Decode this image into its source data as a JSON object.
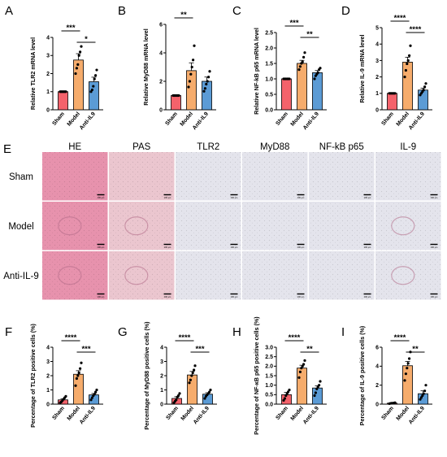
{
  "figure": {
    "histology": {
      "letter": "E",
      "columns": [
        "HE",
        "PAS",
        "TLR2",
        "MyD88",
        "NF-kB p65",
        "IL-9"
      ],
      "rows": [
        "Sham",
        "Model",
        "Anti-IL-9"
      ],
      "scale_bar": "100 μm"
    }
  },
  "colors": {
    "sham": "#f4626b",
    "model": "#f6ac6c",
    "anti": "#5b9bd5",
    "tile_he": "#e792ad",
    "tile_pas": "#ebc6cf",
    "tile_ihc": "#e4e4ec"
  },
  "chart_data": [
    {
      "id": "A",
      "type": "bar",
      "ylabel": "Relative TLR2 mRNA level",
      "categories": [
        "Sham",
        "Model",
        "Anti-IL9"
      ],
      "values": [
        1.0,
        2.75,
        1.55
      ],
      "errors": [
        0.0,
        0.35,
        0.25
      ],
      "points": [
        [
          1.0,
          1.0,
          1.0,
          1.0,
          1.0,
          1.0
        ],
        [
          2.0,
          2.3,
          2.5,
          3.0,
          3.2,
          3.5
        ],
        [
          1.0,
          1.1,
          1.3,
          1.7,
          1.9,
          2.2
        ]
      ],
      "ylim": [
        0,
        4
      ],
      "yticks": [
        0,
        1,
        2,
        3,
        4
      ],
      "significance": [
        {
          "from": 0,
          "to": 1,
          "label": "***"
        },
        {
          "from": 1,
          "to": 2,
          "label": "*"
        }
      ]
    },
    {
      "id": "B",
      "type": "bar",
      "ylabel": "Relative MyD88 mRNA level",
      "categories": [
        "Sham",
        "Model",
        "Anti-IL9"
      ],
      "values": [
        1.0,
        2.75,
        2.0
      ],
      "errors": [
        0.0,
        0.55,
        0.3
      ],
      "points": [
        [
          1.0,
          1.0,
          1.0,
          1.0,
          1.0,
          1.0
        ],
        [
          1.6,
          2.0,
          2.5,
          3.0,
          3.5,
          4.5
        ],
        [
          1.3,
          1.5,
          1.8,
          2.0,
          2.3,
          2.7
        ]
      ],
      "ylim": [
        0,
        6
      ],
      "yticks": [
        0,
        2,
        4,
        6
      ],
      "significance": [
        {
          "from": 0,
          "to": 1,
          "label": "**"
        }
      ]
    },
    {
      "id": "C",
      "type": "bar",
      "ylabel": "Relative NF-kB p65 mRNA level",
      "categories": [
        "Sham",
        "Model",
        "Anti-IL9"
      ],
      "values": [
        1.0,
        1.5,
        1.2
      ],
      "errors": [
        0.0,
        0.1,
        0.07
      ],
      "points": [
        [
          1.0,
          1.0,
          1.0,
          1.0,
          1.0,
          1.0
        ],
        [
          1.3,
          1.4,
          1.5,
          1.55,
          1.7,
          1.85
        ],
        [
          1.0,
          1.1,
          1.15,
          1.2,
          1.3,
          1.35
        ]
      ],
      "ylim": [
        0.0,
        2.5
      ],
      "yticks": [
        0.0,
        0.5,
        1.0,
        1.5,
        2.0,
        2.5
      ],
      "significance": [
        {
          "from": 0,
          "to": 1,
          "label": "***"
        },
        {
          "from": 1,
          "to": 2,
          "label": "**"
        }
      ]
    },
    {
      "id": "D",
      "type": "bar",
      "ylabel": "Relative IL-9 mRNA level",
      "categories": [
        "Sham",
        "Model",
        "Anti-IL9"
      ],
      "values": [
        1.0,
        2.9,
        1.2
      ],
      "errors": [
        0.0,
        0.3,
        0.12
      ],
      "points": [
        [
          1.0,
          1.0,
          1.0,
          1.0,
          1.0,
          1.0
        ],
        [
          2.0,
          2.4,
          2.8,
          3.0,
          3.3,
          3.9
        ],
        [
          0.9,
          1.0,
          1.1,
          1.2,
          1.4,
          1.6
        ]
      ],
      "ylim": [
        0,
        5
      ],
      "yticks": [
        0,
        1,
        2,
        3,
        4,
        5
      ],
      "significance": [
        {
          "from": 0,
          "to": 1,
          "label": "****"
        },
        {
          "from": 1,
          "to": 2,
          "label": "****"
        }
      ]
    },
    {
      "id": "F",
      "type": "bar",
      "ylabel": "Percentage of TLR2 positive cells (%)",
      "categories": [
        "Sham",
        "Model",
        "Anti-IL9"
      ],
      "values": [
        0.3,
        2.1,
        0.65
      ],
      "errors": [
        0.08,
        0.25,
        0.1
      ],
      "points": [
        [
          0.1,
          0.15,
          0.25,
          0.35,
          0.45,
          0.55
        ],
        [
          1.3,
          1.8,
          2.0,
          2.2,
          2.5,
          2.9
        ],
        [
          0.3,
          0.45,
          0.6,
          0.7,
          0.85,
          1.0
        ]
      ],
      "ylim": [
        0,
        4
      ],
      "yticks": [
        0,
        1,
        2,
        3,
        4
      ],
      "significance": [
        {
          "from": 0,
          "to": 1,
          "label": "****"
        },
        {
          "from": 1,
          "to": 2,
          "label": "***"
        }
      ]
    },
    {
      "id": "G",
      "type": "bar",
      "ylabel": "Percentage of MyD88 positive cells (%)",
      "categories": [
        "Sham",
        "Model",
        "Anti-IL9"
      ],
      "values": [
        0.4,
        2.05,
        0.7
      ],
      "errors": [
        0.12,
        0.25,
        0.1
      ],
      "points": [
        [
          0.1,
          0.2,
          0.3,
          0.5,
          0.6,
          0.75
        ],
        [
          1.5,
          1.7,
          2.0,
          2.2,
          2.4,
          2.7
        ],
        [
          0.4,
          0.55,
          0.65,
          0.75,
          0.85,
          1.0
        ]
      ],
      "ylim": [
        0,
        4
      ],
      "yticks": [
        0,
        1,
        2,
        3,
        4
      ],
      "significance": [
        {
          "from": 0,
          "to": 1,
          "label": "****"
        },
        {
          "from": 1,
          "to": 2,
          "label": "***"
        }
      ]
    },
    {
      "id": "H",
      "type": "bar",
      "ylabel": "Percentage of NF-κB p65 positive cells (%)",
      "categories": [
        "Sham",
        "Model",
        "Anti-IL9"
      ],
      "values": [
        0.5,
        1.9,
        0.85
      ],
      "errors": [
        0.12,
        0.15,
        0.12
      ],
      "points": [
        [
          0.2,
          0.3,
          0.45,
          0.55,
          0.65,
          0.75
        ],
        [
          1.4,
          1.7,
          1.9,
          2.0,
          2.1,
          2.3
        ],
        [
          0.45,
          0.6,
          0.8,
          0.9,
          1.0,
          1.2
        ]
      ],
      "ylim": [
        0.0,
        3.0
      ],
      "yticks": [
        0.0,
        0.5,
        1.0,
        1.5,
        2.0,
        2.5,
        3.0
      ],
      "significance": [
        {
          "from": 0,
          "to": 1,
          "label": "****"
        },
        {
          "from": 1,
          "to": 2,
          "label": "**"
        }
      ]
    },
    {
      "id": "I",
      "type": "bar",
      "ylabel": "Percentage of IL-9 positive cells (%)",
      "categories": [
        "Sham",
        "Model",
        "Anti-IL9"
      ],
      "values": [
        0.1,
        4.05,
        1.1
      ],
      "errors": [
        0.03,
        0.45,
        0.3
      ],
      "points": [
        [
          0.05,
          0.08,
          0.1,
          0.1,
          0.12,
          0.15
        ],
        [
          2.5,
          3.2,
          3.8,
          4.3,
          4.8,
          5.5
        ],
        [
          0.5,
          0.7,
          0.9,
          1.1,
          1.4,
          2.0
        ]
      ],
      "ylim": [
        0,
        6
      ],
      "yticks": [
        0,
        2,
        4,
        6
      ],
      "significance": [
        {
          "from": 0,
          "to": 1,
          "label": "****"
        },
        {
          "from": 1,
          "to": 2,
          "label": "**"
        }
      ]
    }
  ]
}
